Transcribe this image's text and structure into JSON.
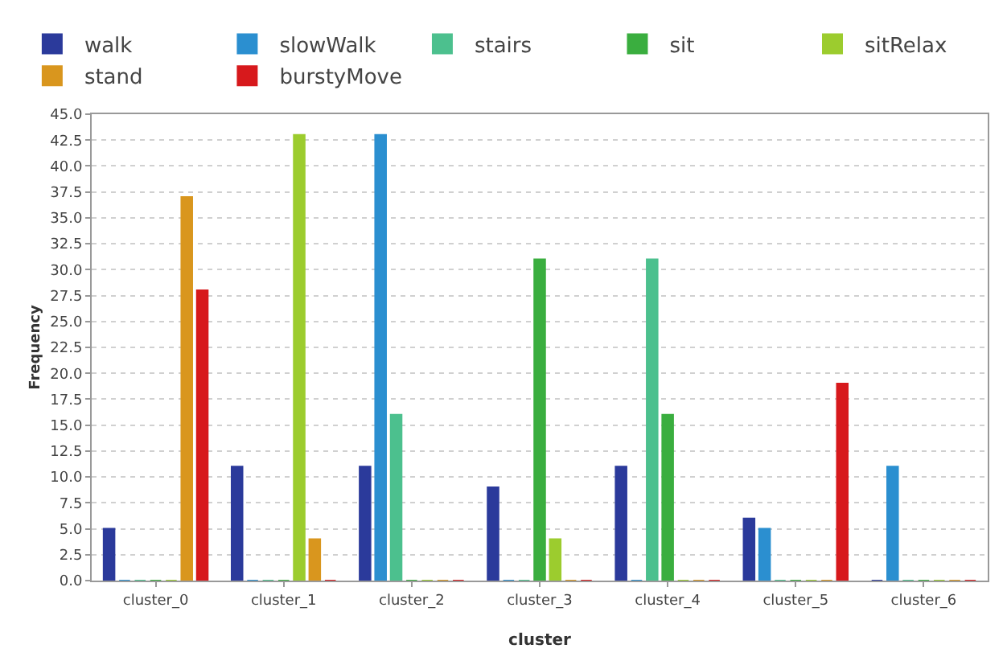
{
  "chart_data": {
    "type": "bar",
    "xlabel": "cluster",
    "ylabel": "Frequency",
    "categories": [
      "cluster_0",
      "cluster_1",
      "cluster_2",
      "cluster_3",
      "cluster_4",
      "cluster_5",
      "cluster_6"
    ],
    "series": [
      {
        "name": "walk",
        "color": "#2b3a9b",
        "values": [
          5,
          11,
          11,
          9,
          11,
          6,
          0
        ]
      },
      {
        "name": "slowWalk",
        "color": "#2b8fd0",
        "values": [
          0,
          0,
          43,
          0,
          0,
          5,
          11
        ]
      },
      {
        "name": "stairs",
        "color": "#4cc08e",
        "values": [
          0,
          0,
          16,
          0,
          31,
          0,
          0
        ]
      },
      {
        "name": "sit",
        "color": "#3aae3f",
        "values": [
          0,
          0,
          0,
          31,
          16,
          0,
          0
        ]
      },
      {
        "name": "sitRelax",
        "color": "#9ccc2e",
        "values": [
          0,
          43,
          0,
          4,
          0,
          0,
          0
        ]
      },
      {
        "name": "stand",
        "color": "#d9961e",
        "values": [
          37,
          4,
          0,
          0,
          0,
          0,
          0
        ]
      },
      {
        "name": "burstyMove",
        "color": "#d7191c",
        "values": [
          28,
          0,
          0,
          0,
          0,
          19,
          0
        ]
      }
    ],
    "ylim": [
      0,
      45
    ],
    "yticks": [
      {
        "value": 0,
        "label": "0.0"
      },
      2.5,
      {
        "value": 5,
        "label": "5.0"
      },
      7.5,
      {
        "value": 10,
        "label": "10.0"
      },
      12.5,
      {
        "value": 15,
        "label": "15.0"
      },
      17.5,
      {
        "value": 20,
        "label": "20.0"
      },
      22.5,
      {
        "value": 25,
        "label": "25.0"
      },
      27.5,
      {
        "value": 30,
        "label": "30.0"
      },
      32.5,
      {
        "value": 35,
        "label": "35.0"
      },
      37.5,
      {
        "value": 40,
        "label": "40.0"
      },
      42.5,
      {
        "value": 45,
        "label": "45.0"
      }
    ],
    "grid": "y",
    "legend": "top"
  }
}
